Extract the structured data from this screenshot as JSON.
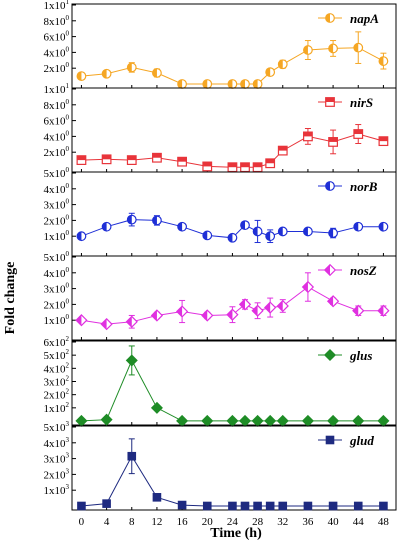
{
  "chart_data": {
    "type": "line",
    "xlabel": "Time (h)",
    "ylabel": "Fold change",
    "x": [
      0,
      4,
      8,
      12,
      16,
      20,
      24,
      26,
      28,
      30,
      32,
      36,
      40,
      44,
      48
    ],
    "x_ticks": [
      "0",
      "4",
      "8",
      "12",
      "16",
      "20",
      "24",
      "28",
      "32",
      "36",
      "40",
      "44",
      "48"
    ],
    "xlim": [
      -1.5,
      50
    ],
    "error_bars": true,
    "panels": [
      {
        "name": "napA",
        "color": "#F5A623",
        "marker": "circle-half",
        "legend_position": "top-right",
        "ylim": [
          0,
          10
        ],
        "y_ticks": [
          {
            "mant": "2x10",
            "exp": "0",
            "v": 2
          },
          {
            "mant": "4x10",
            "exp": "0",
            "v": 4
          },
          {
            "mant": "6x10",
            "exp": "0",
            "v": 6
          },
          {
            "mant": "8x10",
            "exp": "0",
            "v": 8
          },
          {
            "mant": "1x10",
            "exp": "1",
            "v": 10
          }
        ],
        "values": [
          1.0,
          1.3,
          2.1,
          1.4,
          0.0,
          0.0,
          0.0,
          0.0,
          0.0,
          1.5,
          2.5,
          4.3,
          4.5,
          4.6,
          2.9
        ],
        "errors": [
          0.3,
          0.3,
          0.6,
          0.5,
          0.0,
          0.0,
          0.0,
          0.0,
          0.0,
          0.3,
          0.5,
          1.2,
          1.0,
          2.0,
          1.0
        ]
      },
      {
        "name": "nirS",
        "color": "#E8343A",
        "marker": "square-half",
        "legend_position": "top-right",
        "ylim": [
          0,
          10
        ],
        "y_ticks": [
          {
            "mant": "2x10",
            "exp": "0",
            "v": 2
          },
          {
            "mant": "4x10",
            "exp": "0",
            "v": 4
          },
          {
            "mant": "6x10",
            "exp": "0",
            "v": 6
          },
          {
            "mant": "8x10",
            "exp": "0",
            "v": 8
          },
          {
            "mant": "1x10",
            "exp": "1",
            "v": 10
          }
        ],
        "values": [
          1.0,
          1.1,
          1.0,
          1.3,
          0.8,
          0.2,
          0.1,
          0.1,
          0.1,
          0.6,
          2.2,
          4.0,
          3.3,
          4.3,
          3.4
        ],
        "errors": [
          0.3,
          0.3,
          0.3,
          0.3,
          0.2,
          0.1,
          0.05,
          0.05,
          0.05,
          0.2,
          0.3,
          1.0,
          1.5,
          1.2,
          0.5
        ]
      },
      {
        "name": "norB",
        "color": "#1F2FD6",
        "marker": "circle-half",
        "legend_position": "top-right",
        "ylim": [
          0,
          5
        ],
        "y_ticks": [
          {
            "mant": "1x10",
            "exp": "0",
            "v": 1
          },
          {
            "mant": "2x10",
            "exp": "0",
            "v": 2
          },
          {
            "mant": "3x10",
            "exp": "0",
            "v": 3
          },
          {
            "mant": "4x10",
            "exp": "0",
            "v": 4
          },
          {
            "mant": "5x10",
            "exp": "0",
            "v": 5
          }
        ],
        "values": [
          1.0,
          1.6,
          2.05,
          2.0,
          1.6,
          1.05,
          0.9,
          1.7,
          1.3,
          1.0,
          1.3,
          1.3,
          1.2,
          1.6,
          1.6
        ],
        "errors": [
          0.1,
          0.2,
          0.4,
          0.3,
          0.2,
          0.1,
          0.1,
          0.2,
          0.7,
          0.4,
          0.2,
          0.2,
          0.3,
          0.2,
          0.2
        ]
      },
      {
        "name": "nosZ",
        "color": "#E030E0",
        "marker": "diamond-half",
        "legend_position": "top-right",
        "ylim": [
          0,
          5
        ],
        "y_ticks": [
          {
            "mant": "1x10",
            "exp": "0",
            "v": 1
          },
          {
            "mant": "2x10",
            "exp": "0",
            "v": 2
          },
          {
            "mant": "3x10",
            "exp": "0",
            "v": 3
          },
          {
            "mant": "4x10",
            "exp": "0",
            "v": 4
          },
          {
            "mant": "5x10",
            "exp": "0",
            "v": 5
          }
        ],
        "values": [
          1.0,
          0.75,
          0.9,
          1.3,
          1.55,
          1.3,
          1.35,
          2.0,
          1.6,
          1.8,
          1.9,
          3.1,
          2.2,
          1.6,
          1.6
        ],
        "errors": [
          0.1,
          0.1,
          0.4,
          0.2,
          0.7,
          0.2,
          0.5,
          0.3,
          0.5,
          0.6,
          0.4,
          0.9,
          0.2,
          0.3,
          0.3
        ]
      },
      {
        "name": "glus",
        "color": "#1E8C26",
        "marker": "diamond",
        "legend_position": "top-right",
        "ylim": [
          0,
          600
        ],
        "y_ticks": [
          {
            "mant": "1x10",
            "exp": "2",
            "v": 100
          },
          {
            "mant": "2x10",
            "exp": "2",
            "v": 200
          },
          {
            "mant": "3x10",
            "exp": "2",
            "v": 300
          },
          {
            "mant": "4x10",
            "exp": "2",
            "v": 400
          },
          {
            "mant": "5x10",
            "exp": "2",
            "v": 500
          },
          {
            "mant": "6x10",
            "exp": "2",
            "v": 600
          }
        ],
        "values": [
          1,
          10,
          460,
          100,
          1,
          1,
          1,
          1,
          1,
          1,
          1,
          1,
          1,
          1,
          1
        ],
        "errors": [
          0,
          0,
          110,
          0,
          0,
          0,
          0,
          0,
          0,
          0,
          0,
          0,
          0,
          0,
          0
        ]
      },
      {
        "name": "glud",
        "color": "#1E2A80",
        "marker": "square",
        "legend_position": "top-right",
        "ylim": [
          0,
          5000
        ],
        "y_ticks": [
          {
            "mant": "1x10",
            "exp": "3",
            "v": 1000
          },
          {
            "mant": "2x10",
            "exp": "3",
            "v": 2000
          },
          {
            "mant": "3x10",
            "exp": "3",
            "v": 3000
          },
          {
            "mant": "4x10",
            "exp": "3",
            "v": 4000
          },
          {
            "mant": "5x10",
            "exp": "3",
            "v": 5000
          }
        ],
        "values": [
          1,
          150,
          3150,
          550,
          60,
          1,
          1,
          1,
          1,
          1,
          1,
          1,
          1,
          1,
          1
        ],
        "errors": [
          0,
          0,
          1100,
          0,
          0,
          0,
          0,
          0,
          0,
          0,
          0,
          0,
          0,
          0,
          0
        ]
      }
    ]
  }
}
